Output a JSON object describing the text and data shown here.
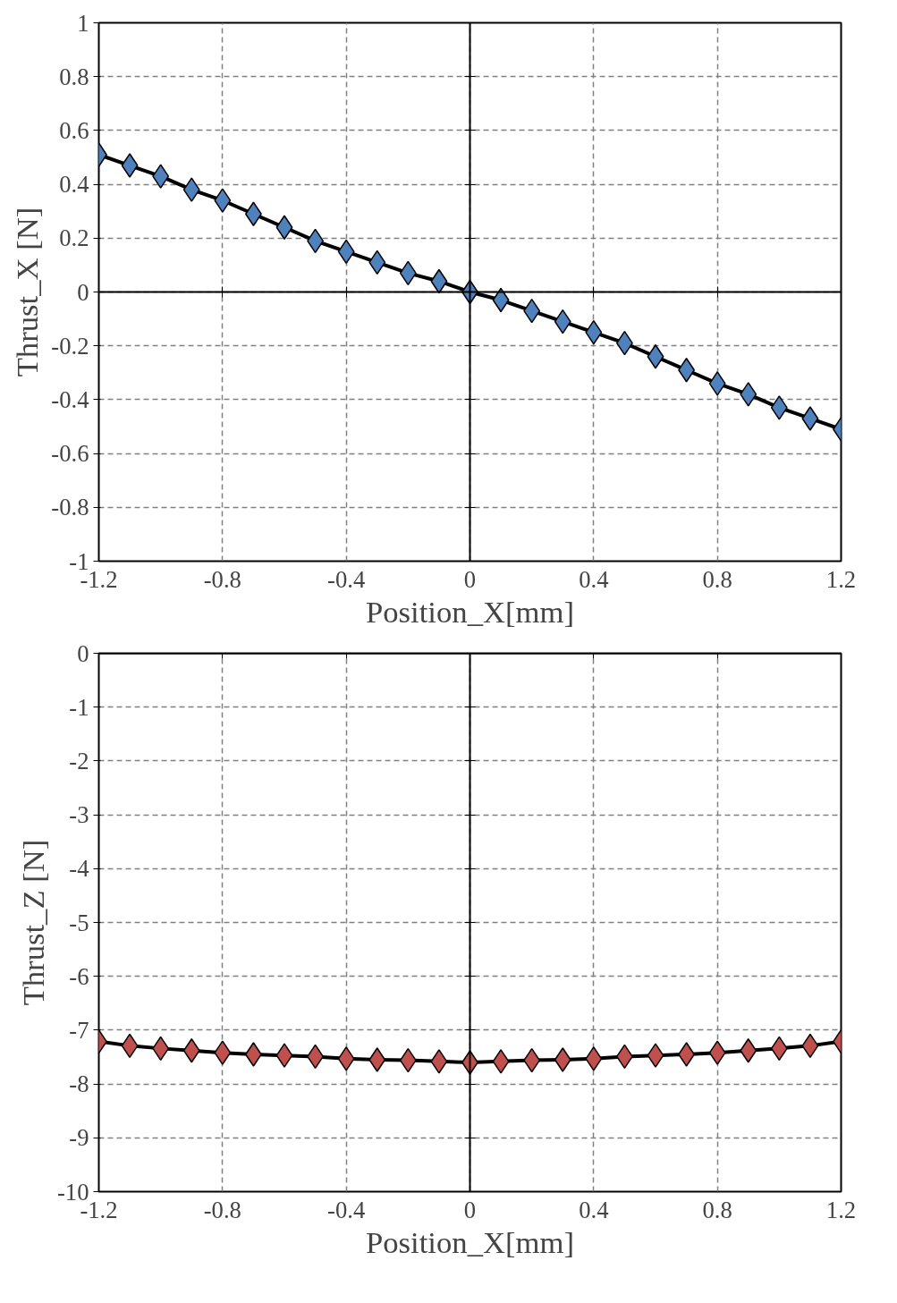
{
  "chart_data": [
    {
      "type": "line",
      "xlabel": "Position_X[mm]",
      "ylabel": "Thrust_X [N]",
      "x": [
        -1.2,
        -1.1,
        -1.0,
        -0.9,
        -0.8,
        -0.7,
        -0.6,
        -0.5,
        -0.4,
        -0.3,
        -0.2,
        -0.1,
        0,
        0.1,
        0.2,
        0.3,
        0.4,
        0.5,
        0.6,
        0.7,
        0.8,
        0.9,
        1.0,
        1.1,
        1.2
      ],
      "series": [
        {
          "color": "#4f81bd",
          "values": [
            0.51,
            0.47,
            0.43,
            0.38,
            0.34,
            0.29,
            0.24,
            0.19,
            0.15,
            0.11,
            0.07,
            0.04,
            0,
            -0.03,
            -0.07,
            -0.11,
            -0.15,
            -0.19,
            -0.24,
            -0.29,
            -0.34,
            -0.38,
            -0.43,
            -0.47,
            -0.51
          ]
        }
      ],
      "xlim": [
        -1.2,
        1.2
      ],
      "xticks": [
        -1.2,
        -0.8,
        -0.4,
        0,
        0.4,
        0.8,
        1.2
      ],
      "ylim": [
        -1,
        1
      ],
      "yticks": [
        -1,
        -0.8,
        -0.6,
        -0.4,
        -0.2,
        0,
        0.2,
        0.4,
        0.6,
        0.8,
        1
      ],
      "grid": true,
      "marker": "diamond",
      "line_style": "solid"
    },
    {
      "type": "line",
      "xlabel": "Position_X[mm]",
      "ylabel": "Thrust_Z [N]",
      "x": [
        -1.2,
        -1.1,
        -1.0,
        -0.9,
        -0.8,
        -0.7,
        -0.6,
        -0.5,
        -0.4,
        -0.3,
        -0.2,
        -0.1,
        0,
        0.1,
        0.2,
        0.3,
        0.4,
        0.5,
        0.6,
        0.7,
        0.8,
        0.9,
        1.0,
        1.1,
        1.2
      ],
      "series": [
        {
          "color": "#c0504d",
          "values": [
            -7.21,
            -7.29,
            -7.34,
            -7.38,
            -7.42,
            -7.45,
            -7.47,
            -7.49,
            -7.53,
            -7.55,
            -7.56,
            -7.58,
            -7.6,
            -7.58,
            -7.56,
            -7.55,
            -7.53,
            -7.49,
            -7.47,
            -7.45,
            -7.42,
            -7.38,
            -7.34,
            -7.29,
            -7.21
          ]
        }
      ],
      "xlim": [
        -1.2,
        1.2
      ],
      "xticks": [
        -1.2,
        -0.8,
        -0.4,
        0,
        0.4,
        0.8,
        1.2
      ],
      "ylim": [
        -10,
        0
      ],
      "yticks": [
        -10,
        -9,
        -8,
        -7,
        -6,
        -5,
        -4,
        -3,
        -2,
        -1,
        0
      ],
      "grid": true,
      "marker": "diamond",
      "line_style": "solid"
    }
  ]
}
